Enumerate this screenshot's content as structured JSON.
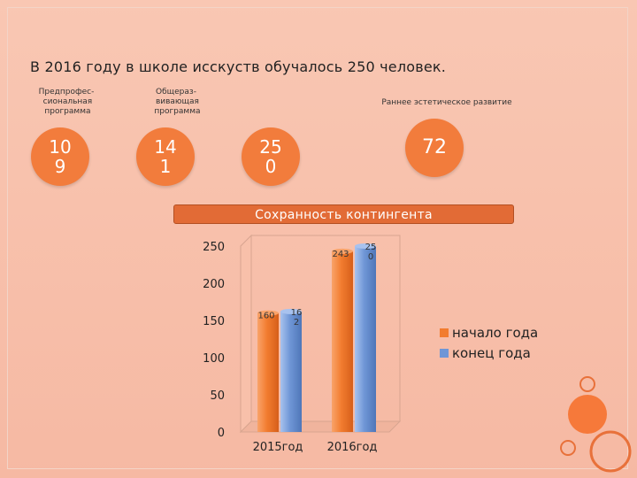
{
  "header": {
    "text": "В 2016 году в школе исскуств обучалось 250 человек."
  },
  "stats": [
    {
      "label": "Предпрофес-\n сиональная\n программа",
      "value": "10\n9"
    },
    {
      "label": "Общераз-\n вивающая\n программа",
      "value": "14\n1"
    },
    {
      "label": "",
      "value": "25\n0"
    },
    {
      "label": "Раннее эстетическое развитие",
      "value": "72"
    }
  ],
  "chart_data": {
    "type": "bar",
    "title": "Сохранность контингента",
    "categories": [
      "2015год",
      "2016год"
    ],
    "series": [
      {
        "name": "начало года",
        "values": [
          160,
          243
        ],
        "data_labels": [
          "160",
          "243"
        ],
        "color": "#f27c2f"
      },
      {
        "name": "конец года",
        "values": [
          162,
          250
        ],
        "data_labels": [
          "16\n2",
          "25\n0"
        ],
        "color": "#6f96d6"
      }
    ],
    "yticks": [
      0,
      50,
      100,
      150,
      200,
      250
    ],
    "ylim": [
      0,
      250
    ],
    "grid": false,
    "legend": "right"
  },
  "colors": {
    "accent": "#f27c3c",
    "title_bar": "#e26b36"
  }
}
